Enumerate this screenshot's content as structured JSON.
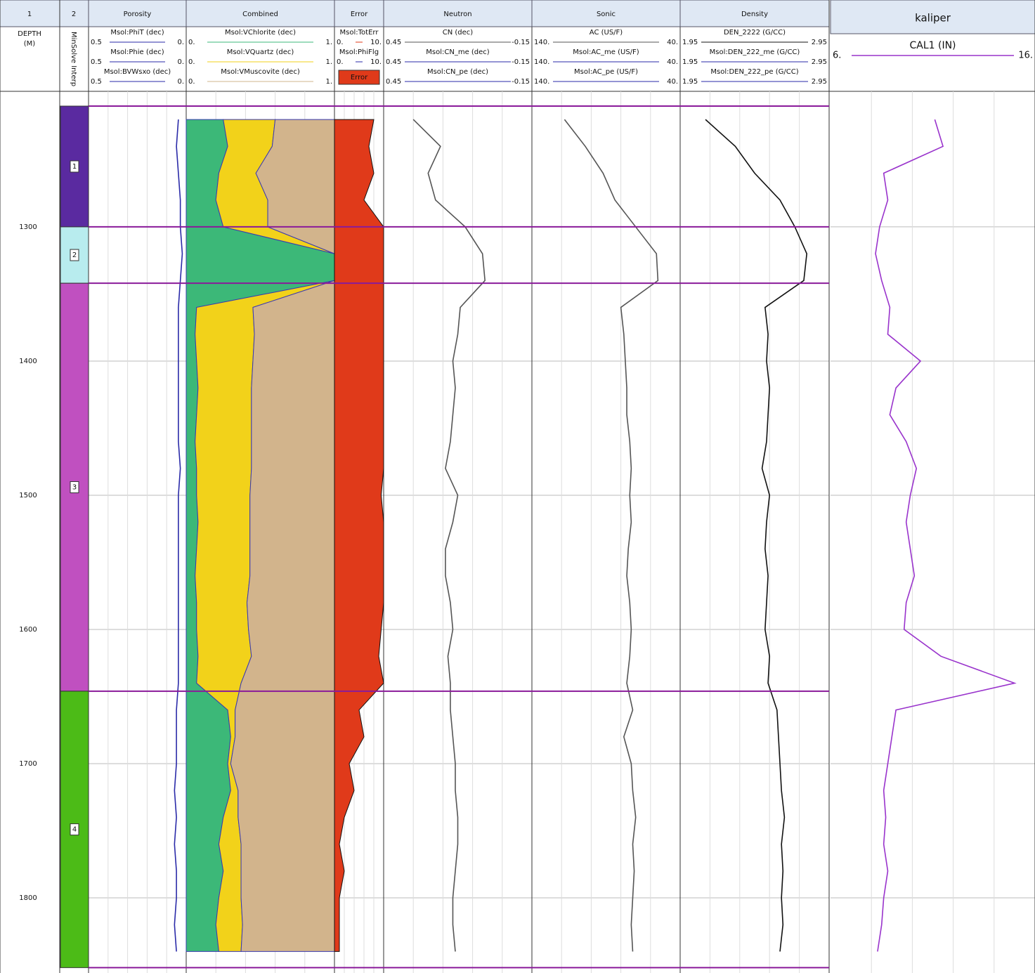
{
  "tab_labels": {
    "depth_track": "1",
    "zone_track": "2"
  },
  "depth_track": {
    "label": "DEPTH",
    "unit": "(M)",
    "ylim": [
      1199,
      1856
    ],
    "yticks": [
      1300,
      1400,
      1500,
      1600,
      1700,
      1800
    ]
  },
  "zones": {
    "title": "MinSolve Interp",
    "labels": [
      "1",
      "2",
      "3",
      "4"
    ],
    "tops": [
      1210,
      1300,
      1342,
      1646
    ],
    "bottoms": [
      1300,
      1342,
      1646,
      1852
    ],
    "colors": [
      "#5a2aa0",
      "#b8ecee",
      "#c050c0",
      "#4cbb17"
    ]
  },
  "sample_depths": [
    1220,
    1240,
    1260,
    1280,
    1300,
    1320,
    1340,
    1360,
    1380,
    1400,
    1420,
    1440,
    1460,
    1480,
    1500,
    1520,
    1540,
    1560,
    1580,
    1600,
    1620,
    1640,
    1660,
    1680,
    1700,
    1720,
    1740,
    1760,
    1780,
    1800,
    1820,
    1840
  ],
  "tracks": [
    {
      "title": "Porosity",
      "type": "line",
      "curves": [
        {
          "name": "Msol:PhiT (dec)",
          "scale": [
            0.5,
            {
              "value": 0,
              "label": "0."
            }
          ],
          "color": "#2a2aa8",
          "values": [
            0.04,
            0.05,
            0.04,
            0.03,
            0.03,
            0.02,
            0.03,
            0.04,
            0.04,
            0.04,
            0.04,
            0.04,
            0.04,
            0.03,
            0.04,
            0.04,
            0.04,
            0.04,
            0.04,
            0.04,
            0.04,
            0.04,
            0.05,
            0.05,
            0.05,
            0.06,
            0.05,
            0.06,
            0.05,
            0.05,
            0.06,
            0.05
          ]
        },
        {
          "name": "Msol:Phie (dec)",
          "scale": [
            0.5,
            {
              "value": 0,
              "label": "0."
            }
          ]
        },
        {
          "name": "Msol:BVWsxo (dec)",
          "scale": [
            0.5,
            {
              "value": 0,
              "label": "0."
            }
          ]
        }
      ]
    },
    {
      "title": "Combined",
      "type": "stack",
      "curves": [
        {
          "name": "Msol:VChlorite (dec)",
          "scale": [
            {
              "value": 0,
              "label": "0."
            },
            {
              "value": 1,
              "label": "1."
            }
          ],
          "color": "#3cb878",
          "values": [
            0.25,
            0.28,
            0.22,
            0.2,
            0.25,
            1,
            1,
            0.07,
            0.06,
            0.07,
            0.08,
            0.07,
            0.06,
            0.07,
            0.07,
            0.08,
            0.07,
            0.06,
            0.07,
            0.07,
            0.08,
            0.07,
            0.28,
            0.3,
            0.28,
            0.3,
            0.25,
            0.22,
            0.25,
            0.22,
            0.2,
            0.22
          ]
        },
        {
          "name": "Msol:VQuartz (dec)",
          "scale": [
            {
              "value": 0,
              "label": "0."
            },
            {
              "value": 1,
              "label": "1."
            }
          ],
          "color": "#f2d21a",
          "values": [
            0.35,
            0.3,
            0.25,
            0.35,
            0.3,
            0,
            0,
            0.38,
            0.4,
            0.38,
            0.36,
            0.37,
            0.38,
            0.37,
            0.36,
            0.35,
            0.36,
            0.37,
            0.34,
            0.35,
            0.36,
            0.3,
            0.05,
            0.03,
            0.02,
            0.05,
            0.1,
            0.15,
            0.12,
            0.15,
            0.18,
            0.15
          ]
        },
        {
          "name": "Msol:VMuscovite (dec)",
          "scale": [
            {
              "value": 0,
              "label": "0."
            },
            {
              "value": 1,
              "label": "1."
            }
          ],
          "color": "#d2b48c",
          "values": [
            0.4,
            0.42,
            0.53,
            0.45,
            0.45,
            0,
            0,
            0.55,
            0.54,
            0.55,
            0.56,
            0.56,
            0.56,
            0.56,
            0.57,
            0.57,
            0.57,
            0.57,
            0.59,
            0.58,
            0.56,
            0.63,
            0.67,
            0.67,
            0.7,
            0.65,
            0.65,
            0.63,
            0.63,
            0.63,
            0.62,
            0.63
          ]
        }
      ]
    },
    {
      "title": "Error",
      "type": "area",
      "legend": "Error",
      "curves": [
        {
          "name": "Msol:TotErr",
          "scale": [
            {
              "value": 0,
              "label": "0."
            },
            {
              "value": 10,
              "label": "10."
            }
          ],
          "color": "#e03a1a",
          "values": [
            8,
            7,
            8,
            6,
            10,
            10,
            10,
            10,
            10,
            10,
            10,
            10,
            10,
            10,
            9.5,
            10,
            10,
            10,
            10,
            9.5,
            9,
            10,
            5,
            6,
            3,
            4,
            2,
            1,
            2,
            1,
            1,
            1
          ]
        },
        {
          "name": "Msol:PhiFlg",
          "scale": [
            {
              "value": 0,
              "label": "0."
            },
            {
              "value": 10,
              "label": "10."
            }
          ]
        }
      ]
    },
    {
      "title": "Neutron",
      "type": "line",
      "curves": [
        {
          "name": "CN (dec)",
          "scale": [
            0.45,
            -0.15
          ],
          "color": "#555555",
          "values": [
            0.33,
            0.22,
            0.27,
            0.24,
            0.12,
            0.05,
            0.04,
            0.14,
            0.15,
            0.17,
            0.16,
            0.17,
            0.18,
            0.2,
            0.15,
            0.17,
            0.2,
            0.2,
            0.18,
            0.17,
            0.19,
            0.18,
            0.18,
            0.17,
            0.16,
            0.16,
            0.15,
            0.15,
            0.16,
            0.17,
            0.17,
            0.16
          ]
        },
        {
          "name": "Msol:CN_me (dec)",
          "scale": [
            0.45,
            -0.15
          ]
        },
        {
          "name": "Msol:CN_pe (dec)",
          "scale": [
            0.45,
            -0.15
          ]
        }
      ]
    },
    {
      "title": "Sonic",
      "type": "line",
      "curves": [
        {
          "name": "AC (US/F)",
          "scale": [
            {
              "value": 140,
              "label": "140."
            },
            {
              "value": 40,
              "label": "40."
            }
          ],
          "color": "#555555",
          "values": [
            118,
            104,
            92,
            84,
            70,
            56,
            55,
            80,
            78,
            77,
            76,
            76,
            74,
            73,
            74,
            73,
            75,
            76,
            74,
            73,
            74,
            76,
            72,
            78,
            73,
            72,
            70,
            72,
            71,
            72,
            73,
            72
          ]
        },
        {
          "name": "Msol:AC_me (US/F)",
          "scale": [
            {
              "value": 140,
              "label": "140."
            },
            {
              "value": 40,
              "label": "40."
            }
          ]
        },
        {
          "name": "Msol:AC_pe (US/F)",
          "scale": [
            {
              "value": 140,
              "label": "140."
            },
            {
              "value": 40,
              "label": "40."
            }
          ]
        }
      ]
    },
    {
      "title": "Density",
      "type": "line",
      "curves": [
        {
          "name": "DEN_2222 (G/CC)",
          "scale": [
            1.95,
            2.95
          ],
          "color": "#111111",
          "values": [
            2.12,
            2.32,
            2.45,
            2.62,
            2.72,
            2.8,
            2.78,
            2.52,
            2.54,
            2.53,
            2.55,
            2.54,
            2.53,
            2.5,
            2.55,
            2.53,
            2.52,
            2.54,
            2.53,
            2.52,
            2.55,
            2.54,
            2.6,
            2.61,
            2.62,
            2.63,
            2.65,
            2.63,
            2.64,
            2.63,
            2.64,
            2.62
          ]
        },
        {
          "name": "Msol:DEN_222_me (G/CC)",
          "scale": [
            1.95,
            2.95
          ]
        },
        {
          "name": "Msol:DEN_222_pe (G/CC)",
          "scale": [
            1.95,
            2.95
          ]
        }
      ]
    },
    {
      "title": "kaliper",
      "type": "line",
      "curves": [
        {
          "name": "CAL1 (IN)",
          "scale": [
            {
              "value": 6,
              "label": "6."
            },
            {
              "value": 16,
              "label": "16."
            }
          ],
          "color": "#9933cc",
          "values": [
            11.1,
            11.5,
            8.6,
            8.8,
            8.4,
            8.2,
            8.5,
            8.9,
            8.8,
            10.4,
            9.2,
            8.9,
            9.7,
            10.2,
            9.9,
            9.7,
            9.9,
            10.1,
            9.7,
            9.6,
            11.4,
            15.0,
            9.2,
            9.0,
            8.8,
            8.6,
            8.7,
            8.6,
            8.8,
            8.6,
            8.5,
            8.3
          ]
        }
      ]
    }
  ]
}
